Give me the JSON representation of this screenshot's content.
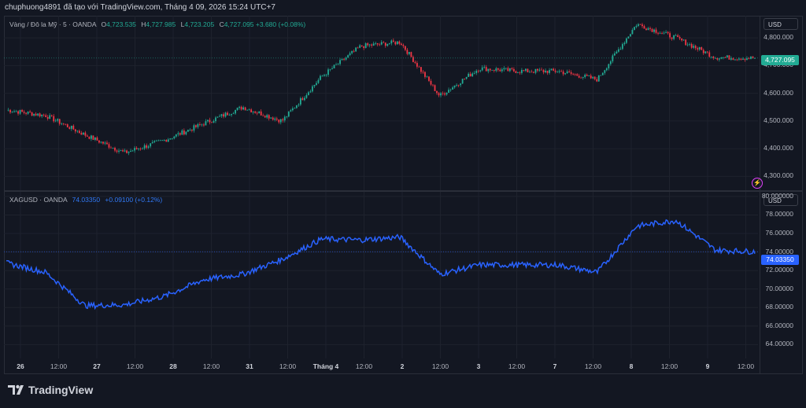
{
  "header": {
    "credit": "chuphuong4891 đã tạo với TradingView.com, Tháng 4 09, 2026 15:24 UTC+7"
  },
  "pane1": {
    "symbol": "Vàng / Đô la Mỹ · 5 · OANDA",
    "ohlc": {
      "o_label": "O",
      "o": "4,723.535",
      "h_label": "H",
      "h": "4,727.985",
      "l_label": "L",
      "l": "4,723.205",
      "c_label": "C",
      "c": "4,727.095",
      "change": "+3.680 (+0.08%)"
    },
    "currency": "USD",
    "y_ticks": [
      "4,800.000",
      "4,700.000",
      "4,600.000",
      "4,500.000",
      "4,400.000",
      "4,300.000"
    ],
    "last_price": "4,727.095",
    "colors": {
      "up": "#22ab94",
      "down": "#f23645"
    }
  },
  "pane2": {
    "symbol": "XAGUSD · OANDA",
    "value": "74.03350",
    "change": "+0.09100 (+0.12%)",
    "currency": "USD",
    "y_ticks": [
      "80.000000",
      "78.00000",
      "76.00000",
      "74.00000",
      "72.00000",
      "70.00000",
      "68.00000",
      "66.00000",
      "64.00000"
    ],
    "last_price": "74.03350",
    "colors": {
      "line": "#2962ff"
    }
  },
  "x_axis": {
    "labels": [
      "26",
      "12:00",
      "27",
      "12:00",
      "28",
      "12:00",
      "31",
      "12:00",
      "Tháng 4",
      "12:00",
      "2",
      "12:00",
      "3",
      "12:00",
      "7",
      "12:00",
      "8",
      "12:00",
      "9",
      "12:00"
    ]
  },
  "footer": {
    "brand": "TradingView"
  },
  "chart_data": [
    {
      "type": "line",
      "title": "Vàng / Đô la Mỹ · 5 · OANDA",
      "ylim": [
        4250,
        4880
      ],
      "x": [
        "26",
        "12:00",
        "27",
        "12:00",
        "28",
        "12:00",
        "31",
        "12:00",
        "Tháng 4",
        "12:00",
        "2",
        "12:00",
        "3",
        "12:00",
        "7",
        "12:00",
        "8",
        "12:00",
        "9",
        "12:00"
      ],
      "series": [
        {
          "name": "XAUUSD",
          "values": [
            4540,
            4520,
            4450,
            4385,
            4430,
            4490,
            4550,
            4500,
            4660,
            4770,
            4785,
            4590,
            4690,
            4680,
            4680,
            4650,
            4850,
            4800,
            4730,
            4727
          ]
        }
      ]
    },
    {
      "type": "line",
      "title": "XAGUSD · OANDA",
      "ylim": [
        62.5,
        80.5
      ],
      "x": [
        "26",
        "12:00",
        "27",
        "12:00",
        "28",
        "12:00",
        "31",
        "12:00",
        "Tháng 4",
        "12:00",
        "2",
        "12:00",
        "3",
        "12:00",
        "7",
        "12:00",
        "8",
        "12:00",
        "9",
        "12:00"
      ],
      "series": [
        {
          "name": "XAGUSD",
          "values": [
            72.8,
            71.8,
            68.2,
            68.3,
            69.2,
            71.0,
            71.6,
            73.2,
            75.4,
            75.3,
            75.6,
            71.6,
            72.6,
            72.6,
            72.6,
            71.8,
            76.8,
            77.4,
            74.2,
            74.03
          ]
        }
      ]
    }
  ]
}
